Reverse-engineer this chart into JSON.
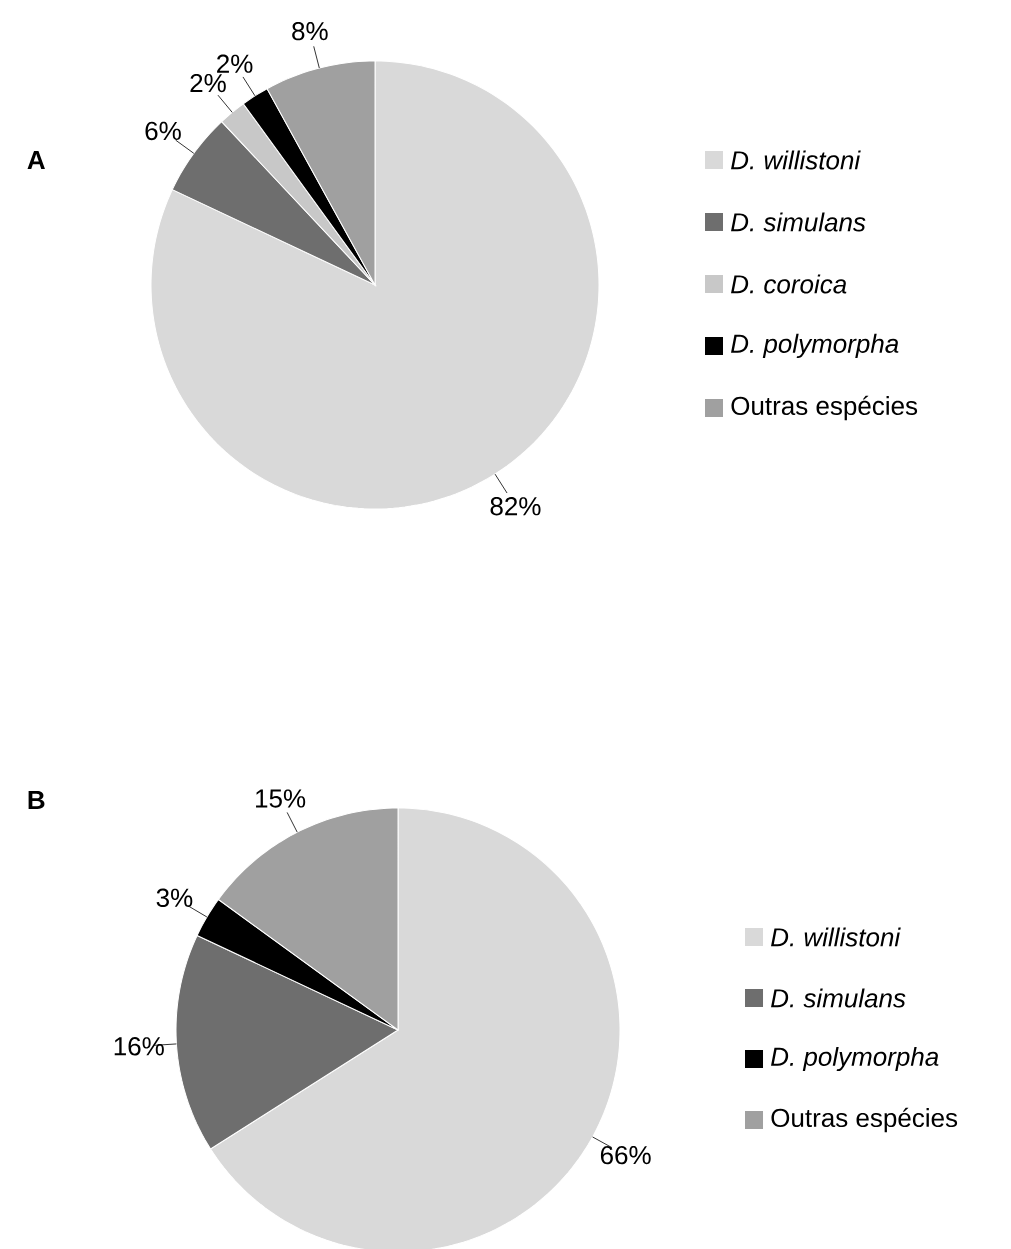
{
  "chart_data": [
    {
      "type": "pie",
      "title": "A",
      "categories": [
        "*D. willistoni*",
        "*D. simulans*",
        "*D. coroica*",
        "*D. polymorpha*",
        "Outras espécies"
      ],
      "values": [
        82,
        6,
        2,
        2,
        8
      ],
      "value_labels": [
        "82%",
        "6%",
        "2%",
        "2%",
        "8%"
      ],
      "colors": [
        "#d9d9d9",
        "#6e6e6e",
        "#c8c8c8",
        "#000000",
        "#a0a0a0"
      ],
      "legend": "right"
    },
    {
      "type": "pie",
      "title": "B",
      "categories": [
        "*D. willistoni*",
        "*D. simulans*",
        "*D. polymorpha*",
        "Outras espécies"
      ],
      "values": [
        66,
        16,
        3,
        15
      ],
      "value_labels": [
        "66%",
        "16%",
        "3%",
        "15%"
      ],
      "colors": [
        "#d9d9d9",
        "#6e6e6e",
        "#000000",
        "#a0a0a0"
      ],
      "legend": "right"
    }
  ]
}
